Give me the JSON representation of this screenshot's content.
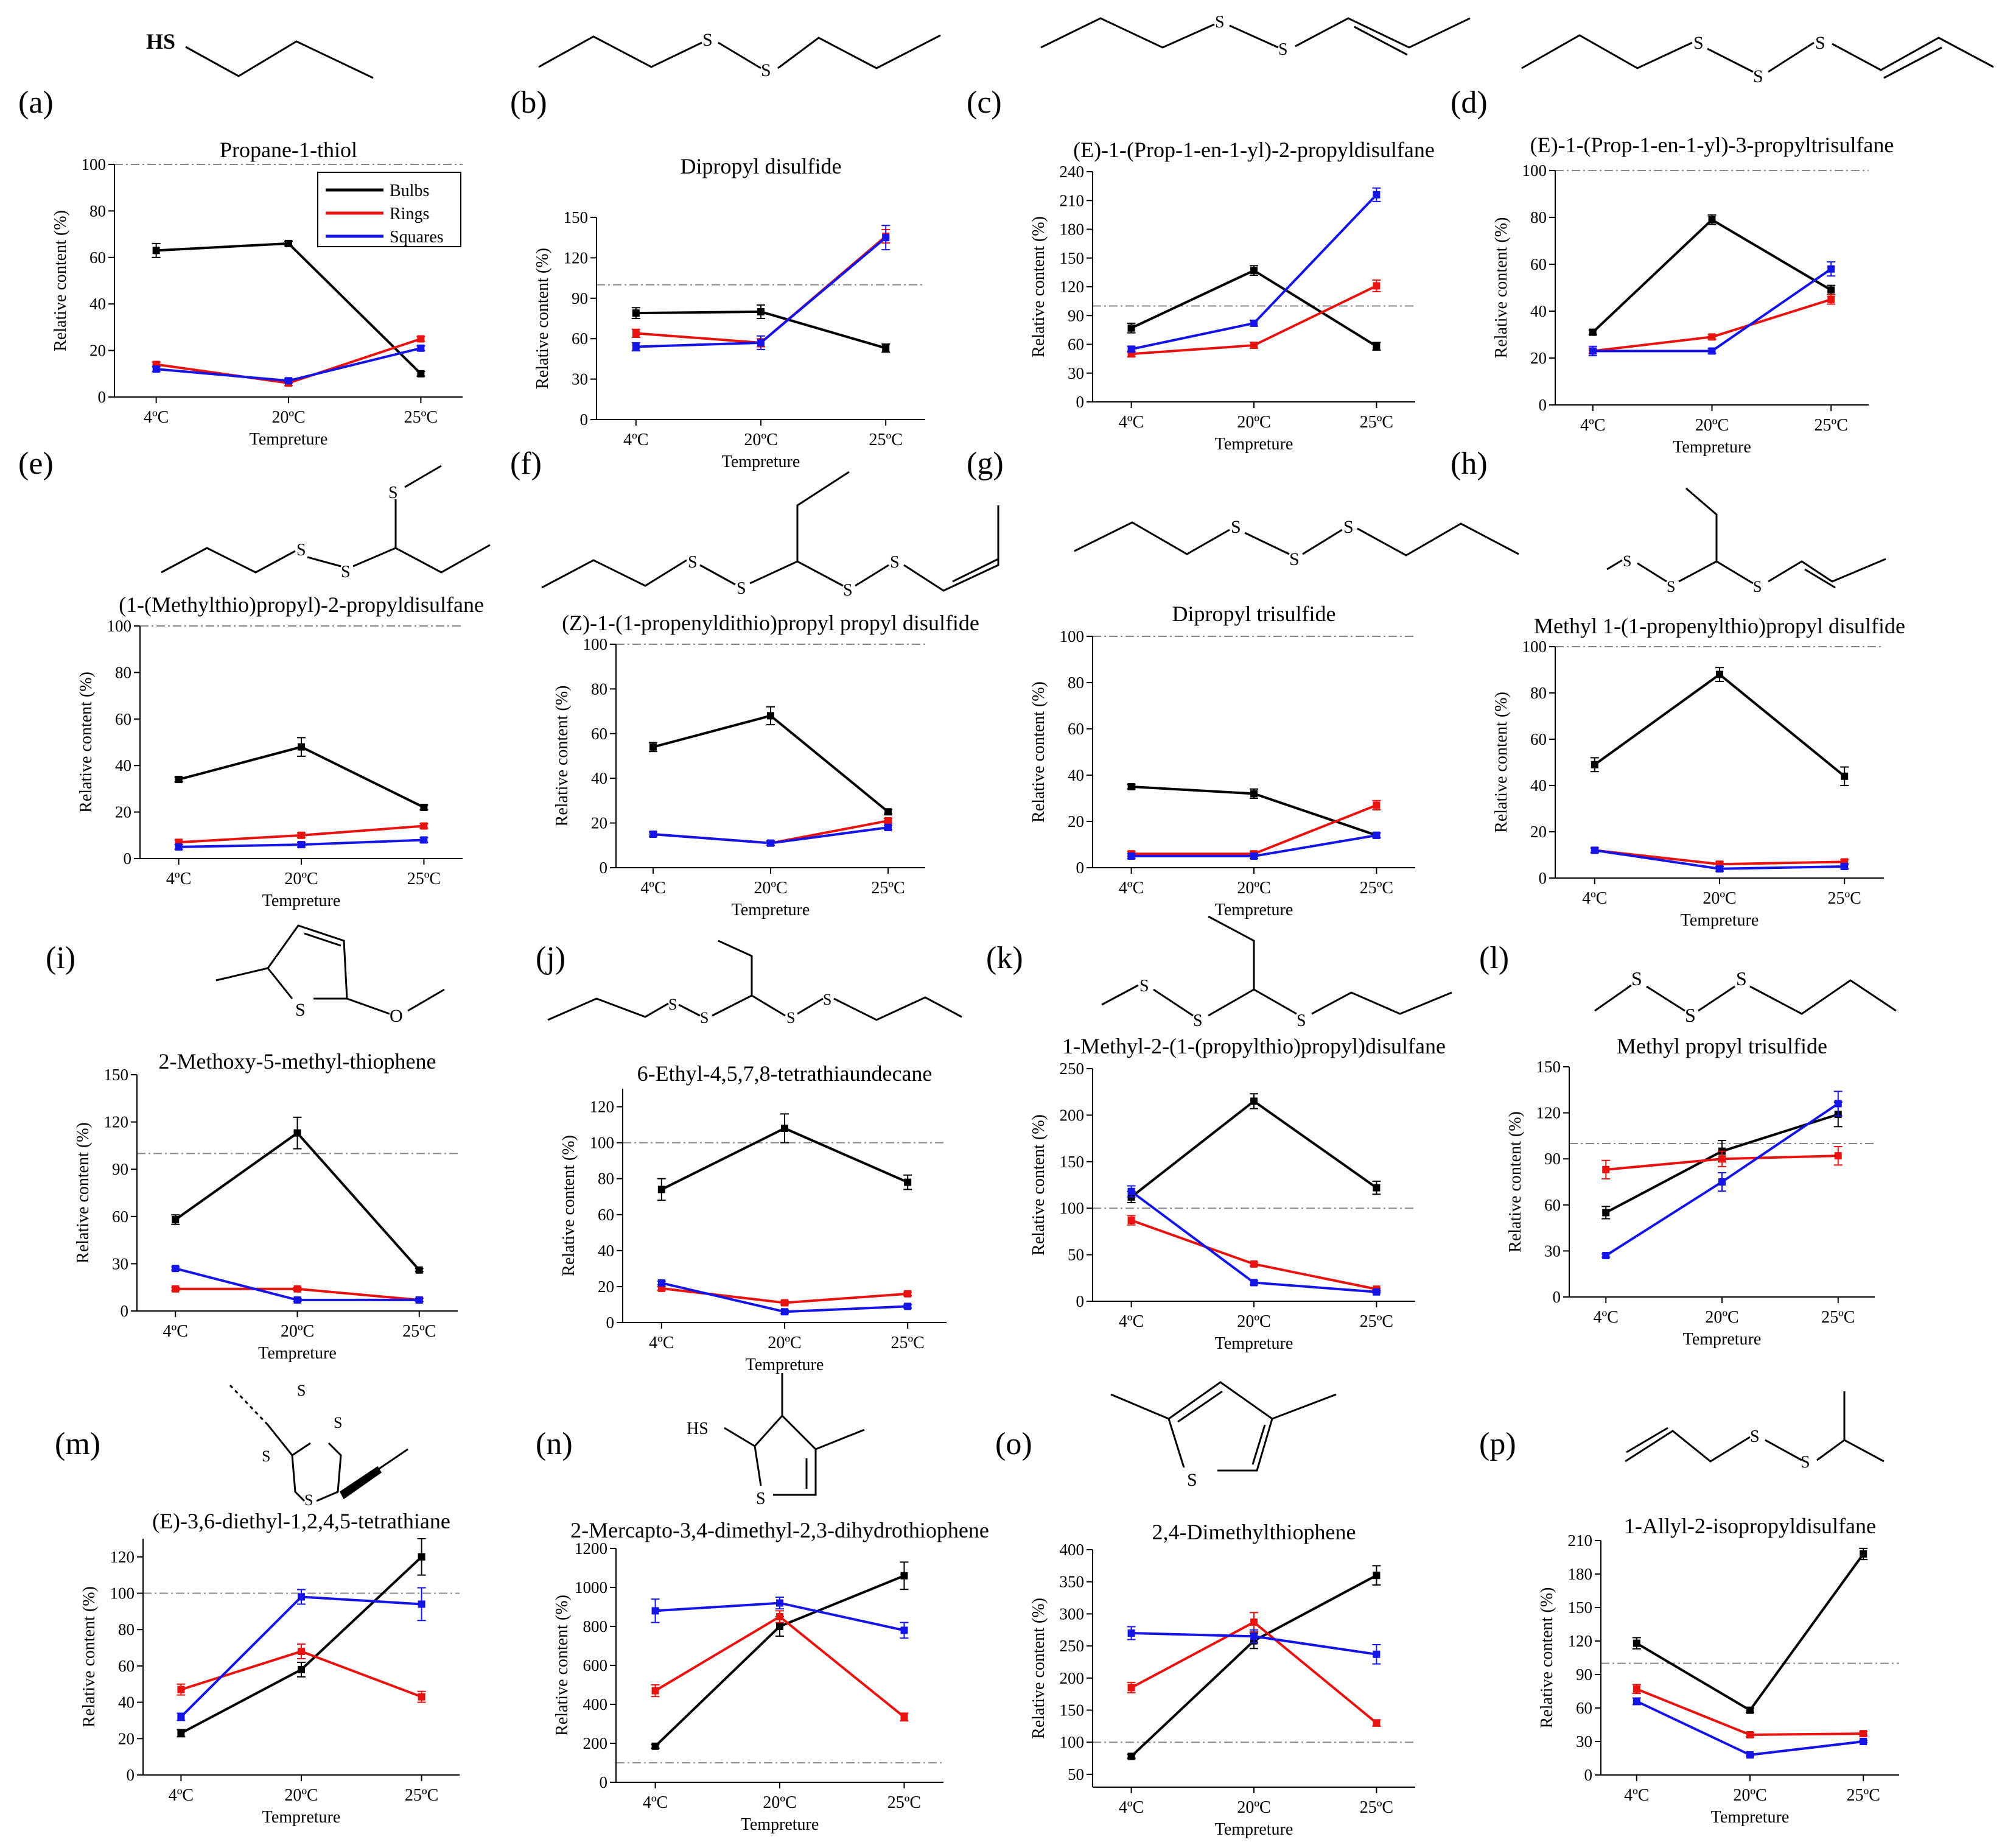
{
  "figure": {
    "legend": {
      "entries": [
        {
          "label": "Bulbs",
          "color": "#000000"
        },
        {
          "label": "Rings",
          "color": "#e8130f"
        },
        {
          "label": "Squares",
          "color": "#1414e6"
        }
      ]
    },
    "series_colors": {
      "Bulbs": "#000000",
      "Rings": "#e8130f",
      "Squares": "#1414e6"
    },
    "reference_line_color": "#888888"
  },
  "chart_data": [
    {
      "letter": "(a)",
      "title": "Propane-1-thiol",
      "type": "line",
      "categories": [
        "4ºC",
        "20ºC",
        "25ºC"
      ],
      "xlabel": "Tempreture",
      "ylabel": "Relative content (%)",
      "ylim": [
        0,
        100
      ],
      "yticks": [
        "0",
        "20",
        "40",
        "60",
        "80",
        "100"
      ],
      "reference_line": 100,
      "legend": "top-right",
      "series": [
        {
          "name": "Bulbs",
          "values": [
            63,
            66,
            10
          ],
          "err": [
            3,
            1,
            1
          ]
        },
        {
          "name": "Rings",
          "values": [
            14,
            6,
            25
          ],
          "err": [
            1,
            1,
            1
          ]
        },
        {
          "name": "Squares",
          "values": [
            12,
            7,
            21
          ],
          "err": [
            1,
            1,
            1
          ]
        }
      ]
    },
    {
      "letter": "(b)",
      "title": "Dipropyl disulfide",
      "type": "line",
      "categories": [
        "4ºC",
        "20ºC",
        "25ºC"
      ],
      "xlabel": "Tempreture",
      "ylabel": "Relative content (%)",
      "ylim": [
        0,
        150
      ],
      "yticks": [
        "0",
        "30",
        "60",
        "90",
        "120",
        "150"
      ],
      "reference_line": 100,
      "series": [
        {
          "name": "Bulbs",
          "values": [
            79,
            80,
            53
          ],
          "err": [
            4,
            5,
            3
          ]
        },
        {
          "name": "Rings",
          "values": [
            64,
            57,
            136
          ],
          "err": [
            3,
            3,
            5
          ]
        },
        {
          "name": "Squares",
          "values": [
            54,
            57,
            135
          ],
          "err": [
            3,
            5,
            9
          ]
        }
      ]
    },
    {
      "letter": "(c)",
      "title": "(E)-1-(Prop-1-en-1-yl)-2-propyldisulfane",
      "type": "line",
      "categories": [
        "4ºC",
        "20ºC",
        "25ºC"
      ],
      "xlabel": "Tempreture",
      "ylabel": "Relative content (%)",
      "ylim": [
        0,
        240
      ],
      "yticks": [
        "0",
        "30",
        "60",
        "90",
        "120",
        "150",
        "180",
        "210",
        "240"
      ],
      "reference_line": 100,
      "series": [
        {
          "name": "Bulbs",
          "values": [
            77,
            137,
            58
          ],
          "err": [
            5,
            5,
            4
          ]
        },
        {
          "name": "Rings",
          "values": [
            50,
            59,
            121
          ],
          "err": [
            3,
            3,
            6
          ]
        },
        {
          "name": "Squares",
          "values": [
            55,
            82,
            216
          ],
          "err": [
            3,
            3,
            7
          ]
        }
      ]
    },
    {
      "letter": "(d)",
      "title": "(E)-1-(Prop-1-en-1-yl)-3-propyltrisulfane",
      "type": "line",
      "categories": [
        "4ºC",
        "20ºC",
        "25ºC"
      ],
      "xlabel": "Tempreture",
      "ylabel": "Relative content (%)",
      "ylim": [
        0,
        100
      ],
      "yticks": [
        "0",
        "20",
        "40",
        "60",
        "80",
        "100"
      ],
      "reference_line": 100,
      "series": [
        {
          "name": "Bulbs",
          "values": [
            31,
            79,
            49
          ],
          "err": [
            1,
            2,
            2
          ]
        },
        {
          "name": "Rings",
          "values": [
            23,
            29,
            45
          ],
          "err": [
            1,
            1,
            2
          ]
        },
        {
          "name": "Squares",
          "values": [
            23,
            23,
            58
          ],
          "err": [
            2,
            1,
            3
          ]
        }
      ]
    },
    {
      "letter": "(e)",
      "title": "(1-(Methylthio)propyl)-2-propyldisulfane",
      "type": "line",
      "categories": [
        "4ºC",
        "20ºC",
        "25ºC"
      ],
      "xlabel": "Tempreture",
      "ylabel": "Relative content (%)",
      "ylim": [
        0,
        100
      ],
      "yticks": [
        "0",
        "20",
        "40",
        "60",
        "80",
        "100"
      ],
      "reference_line": 100,
      "series": [
        {
          "name": "Bulbs",
          "values": [
            34,
            48,
            22
          ],
          "err": [
            1,
            4,
            1
          ]
        },
        {
          "name": "Rings",
          "values": [
            7,
            10,
            14
          ],
          "err": [
            1,
            1,
            1
          ]
        },
        {
          "name": "Squares",
          "values": [
            5,
            6,
            8
          ],
          "err": [
            1,
            1,
            1
          ]
        }
      ]
    },
    {
      "letter": "(f)",
      "title": "(Z)-1-(1-propenyldithio)propyl propyl disulfide",
      "type": "line",
      "categories": [
        "4ºC",
        "20ºC",
        "25ºC"
      ],
      "xlabel": "Tempreture",
      "ylabel": "Relative content (%)",
      "ylim": [
        0,
        100
      ],
      "yticks": [
        "0",
        "20",
        "40",
        "60",
        "80",
        "100"
      ],
      "reference_line": 100,
      "series": [
        {
          "name": "Bulbs",
          "values": [
            54,
            68,
            25
          ],
          "err": [
            2,
            4,
            1
          ]
        },
        {
          "name": "Rings",
          "values": [
            15,
            11,
            21
          ],
          "err": [
            1,
            1,
            1
          ]
        },
        {
          "name": "Squares",
          "values": [
            15,
            11,
            18
          ],
          "err": [
            1,
            1,
            1
          ]
        }
      ]
    },
    {
      "letter": "(g)",
      "title": "Dipropyl trisulfide",
      "type": "line",
      "categories": [
        "4ºC",
        "20ºC",
        "25ºC"
      ],
      "xlabel": "Tempreture",
      "ylabel": "Relative content (%)",
      "ylim": [
        0,
        100
      ],
      "yticks": [
        "0",
        "20",
        "40",
        "60",
        "80",
        "100"
      ],
      "reference_line": 100,
      "series": [
        {
          "name": "Bulbs",
          "values": [
            35,
            32,
            14
          ],
          "err": [
            1,
            2,
            1
          ]
        },
        {
          "name": "Rings",
          "values": [
            6,
            6,
            27
          ],
          "err": [
            1,
            1,
            2
          ]
        },
        {
          "name": "Squares",
          "values": [
            5,
            5,
            14
          ],
          "err": [
            1,
            1,
            1
          ]
        }
      ]
    },
    {
      "letter": "(h)",
      "title": "Methyl 1-(1-propenylthio)propyl disulfide",
      "type": "line",
      "categories": [
        "4ºC",
        "20ºC",
        "25ºC"
      ],
      "xlabel": "Tempreture",
      "ylabel": "Relative content (%)",
      "ylim": [
        0,
        100
      ],
      "yticks": [
        "0",
        "20",
        "40",
        "60",
        "80",
        "100"
      ],
      "reference_line": 100,
      "series": [
        {
          "name": "Bulbs",
          "values": [
            49,
            88,
            44
          ],
          "err": [
            3,
            3,
            4
          ]
        },
        {
          "name": "Rings",
          "values": [
            12,
            6,
            7
          ],
          "err": [
            1,
            1,
            1
          ]
        },
        {
          "name": "Squares",
          "values": [
            12,
            4,
            5
          ],
          "err": [
            1,
            1,
            1
          ]
        }
      ]
    },
    {
      "letter": "(i)",
      "title": "2-Methoxy-5-methyl-thiophene",
      "type": "line",
      "categories": [
        "4ºC",
        "20ºC",
        "25ºC"
      ],
      "xlabel": "Tempreture",
      "ylabel": "Relative content (%)",
      "ylim": [
        0,
        150
      ],
      "yticks": [
        "0",
        "30",
        "60",
        "90",
        "120",
        "150"
      ],
      "reference_line": 100,
      "series": [
        {
          "name": "Bulbs",
          "values": [
            58,
            113,
            26
          ],
          "err": [
            3,
            10,
            1
          ]
        },
        {
          "name": "Rings",
          "values": [
            14,
            14,
            7
          ],
          "err": [
            1,
            1,
            1
          ]
        },
        {
          "name": "Squares",
          "values": [
            27,
            7,
            7
          ],
          "err": [
            1,
            1,
            1
          ]
        }
      ]
    },
    {
      "letter": "(j)",
      "title": "6-Ethyl-4,5,7,8-tetrathiaundecane",
      "type": "line",
      "categories": [
        "4ºC",
        "20ºC",
        "25ºC"
      ],
      "xlabel": "Tempreture",
      "ylabel": "Relative content (%)",
      "ylim": [
        0,
        130
      ],
      "yticks": [
        "0",
        "20",
        "40",
        "60",
        "80",
        "100",
        "120"
      ],
      "reference_line": 100,
      "series": [
        {
          "name": "Bulbs",
          "values": [
            74,
            108,
            78
          ],
          "err": [
            6,
            8,
            4
          ]
        },
        {
          "name": "Rings",
          "values": [
            19,
            11,
            16
          ],
          "err": [
            1,
            1,
            1
          ]
        },
        {
          "name": "Squares",
          "values": [
            22,
            6,
            9
          ],
          "err": [
            1,
            1,
            1
          ]
        }
      ]
    },
    {
      "letter": "(k)",
      "title": "1-Methyl-2-(1-(propylthio)propyl)disulfane",
      "type": "line",
      "categories": [
        "4ºC",
        "20ºC",
        "25ºC"
      ],
      "xlabel": "Tempreture",
      "ylabel": "Relative content (%)",
      "ylim": [
        0,
        250
      ],
      "yticks": [
        "0",
        "50",
        "100",
        "150",
        "200",
        "250"
      ],
      "reference_line": 100,
      "series": [
        {
          "name": "Bulbs",
          "values": [
            112,
            215,
            122
          ],
          "err": [
            6,
            8,
            7
          ]
        },
        {
          "name": "Rings",
          "values": [
            87,
            40,
            13
          ],
          "err": [
            5,
            2,
            1
          ]
        },
        {
          "name": "Squares",
          "values": [
            118,
            20,
            10
          ],
          "err": [
            6,
            2,
            1
          ]
        }
      ]
    },
    {
      "letter": "(l)",
      "title": "Methyl propyl trisulfide",
      "type": "line",
      "categories": [
        "4ºC",
        "20ºC",
        "25ºC"
      ],
      "xlabel": "Tempreture",
      "ylabel": "Relative content (%)",
      "ylim": [
        0,
        150
      ],
      "yticks": [
        "0",
        "30",
        "60",
        "90",
        "120",
        "150"
      ],
      "reference_line": 100,
      "series": [
        {
          "name": "Bulbs",
          "values": [
            55,
            95,
            119
          ],
          "err": [
            4,
            7,
            8
          ]
        },
        {
          "name": "Rings",
          "values": [
            83,
            90,
            92
          ],
          "err": [
            6,
            5,
            6
          ]
        },
        {
          "name": "Squares",
          "values": [
            27,
            75,
            126
          ],
          "err": [
            1,
            6,
            8
          ]
        }
      ]
    },
    {
      "letter": "(m)",
      "title": "(E)-3,6-diethyl-1,2,4,5-tetrathiane",
      "type": "line",
      "categories": [
        "4ºC",
        "20ºC",
        "25ºC"
      ],
      "xlabel": "Tempreture",
      "ylabel": "Relative content (%)",
      "ylim": [
        0,
        130
      ],
      "yticks": [
        "0",
        "20",
        "40",
        "60",
        "80",
        "100",
        "120"
      ],
      "reference_line": 100,
      "series": [
        {
          "name": "Bulbs",
          "values": [
            23,
            58,
            120
          ],
          "err": [
            2,
            4,
            10
          ]
        },
        {
          "name": "Rings",
          "values": [
            47,
            68,
            43
          ],
          "err": [
            3,
            4,
            3
          ]
        },
        {
          "name": "Squares",
          "values": [
            32,
            98,
            94
          ],
          "err": [
            2,
            4,
            9
          ]
        }
      ]
    },
    {
      "letter": "(n)",
      "title": "2-Mercapto-3,4-dimethyl-2,3-dihydrothiophene",
      "type": "line",
      "categories": [
        "4ºC",
        "20ºC",
        "25ºC"
      ],
      "xlabel": "Tempreture",
      "ylabel": "Relative content (%)",
      "ylim": [
        0,
        1200
      ],
      "yticks": [
        "0",
        "200",
        "400",
        "600",
        "800",
        "1000",
        "1200"
      ],
      "reference_line": 100,
      "series": [
        {
          "name": "Bulbs",
          "values": [
            185,
            800,
            1060
          ],
          "err": [
            10,
            50,
            70
          ]
        },
        {
          "name": "Rings",
          "values": [
            470,
            850,
            335
          ],
          "err": [
            30,
            30,
            20
          ]
        },
        {
          "name": "Squares",
          "values": [
            880,
            920,
            780
          ],
          "err": [
            60,
            30,
            40
          ]
        }
      ]
    },
    {
      "letter": "(o)",
      "title": "2,4-Dimethylthiophene",
      "type": "line",
      "categories": [
        "4ºC",
        "20ºC",
        "25ºC"
      ],
      "xlabel": "Tempreture",
      "ylabel": "Relative content (%)",
      "ylim": [
        30,
        400
      ],
      "yticks": [
        "50",
        "100",
        "150",
        "200",
        "250",
        "300",
        "350",
        "400"
      ],
      "reference_line": 100,
      "series": [
        {
          "name": "Bulbs",
          "values": [
            78,
            258,
            360
          ],
          "err": [
            3,
            12,
            15
          ]
        },
        {
          "name": "Rings",
          "values": [
            185,
            287,
            130
          ],
          "err": [
            8,
            15,
            5
          ]
        },
        {
          "name": "Squares",
          "values": [
            270,
            265,
            237
          ],
          "err": [
            10,
            10,
            15
          ]
        }
      ]
    },
    {
      "letter": "(p)",
      "title": "1-Allyl-2-isopropyldisulfane",
      "type": "line",
      "categories": [
        "4ºC",
        "20ºC",
        "25ºC"
      ],
      "xlabel": "Tempreture",
      "ylabel": "Relative content (%)",
      "ylim": [
        0,
        210
      ],
      "yticks": [
        "0",
        "30",
        "60",
        "90",
        "120",
        "150",
        "180",
        "210"
      ],
      "reference_line": 100,
      "series": [
        {
          "name": "Bulbs",
          "values": [
            118,
            58,
            198
          ],
          "err": [
            5,
            2,
            5
          ]
        },
        {
          "name": "Rings",
          "values": [
            77,
            36,
            37
          ],
          "err": [
            4,
            2,
            2
          ]
        },
        {
          "name": "Squares",
          "values": [
            66,
            18,
            30
          ],
          "err": [
            3,
            1,
            1
          ]
        }
      ]
    }
  ]
}
